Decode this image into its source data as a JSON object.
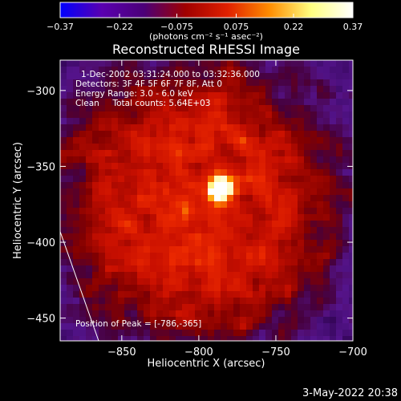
{
  "chart_data": {
    "type": "heatmap",
    "title": "Reconstructed RHESSI Image",
    "xlabel": "Heliocentric X (arcsec)",
    "ylabel": "Heliocentric Y (arcsec)",
    "xlim": [
      -890,
      -700
    ],
    "ylim": [
      -465,
      -280
    ],
    "x_ticks": [
      -850,
      -800,
      -750,
      -700
    ],
    "y_ticks": [
      -300,
      -350,
      -400,
      -450
    ],
    "x_tick_labels": [
      "−850",
      "−800",
      "−750",
      "−700"
    ],
    "y_tick_labels": [
      "−300",
      "−350",
      "−400",
      "−450"
    ],
    "grid": false,
    "colorbar": {
      "range": [
        -0.37,
        0.37
      ],
      "ticks": [
        -0.37,
        -0.22,
        -0.075,
        0.075,
        0.22,
        0.37
      ],
      "tick_labels": [
        "−0.37",
        "−0.22",
        "−0.075",
        "0.075",
        "0.22",
        "0.37"
      ],
      "units_label": "(photons cm⁻² s⁻¹ asec⁻²)",
      "colors": [
        "#0000ff",
        "#5a00b0",
        "#4b0078",
        "#a00000",
        "#e02000",
        "#ff8c00",
        "#ffff80",
        "#ffffff"
      ]
    },
    "annotations": [
      "1-Dec-2002 03:31:24.000 to 03:32:36.000",
      "Detectors: 3F 4F 5F 6F 7F 8F, Att 0",
      "Energy Range: 3.0 - 6.0 keV",
      "Clean     Total counts: 5.64E+03"
    ],
    "peak_label": "Position of Peak = [-786,-365]",
    "peak": {
      "x": -786,
      "y": -365,
      "value": 0.37
    },
    "limb_line": [
      [
        -890,
        -393
      ],
      [
        -865,
        -465
      ]
    ],
    "region_center": [
      -800,
      -375
    ],
    "region_radius_arcsec": 95
  },
  "footer": {
    "timestamp": "3-May-2022 20:38"
  }
}
